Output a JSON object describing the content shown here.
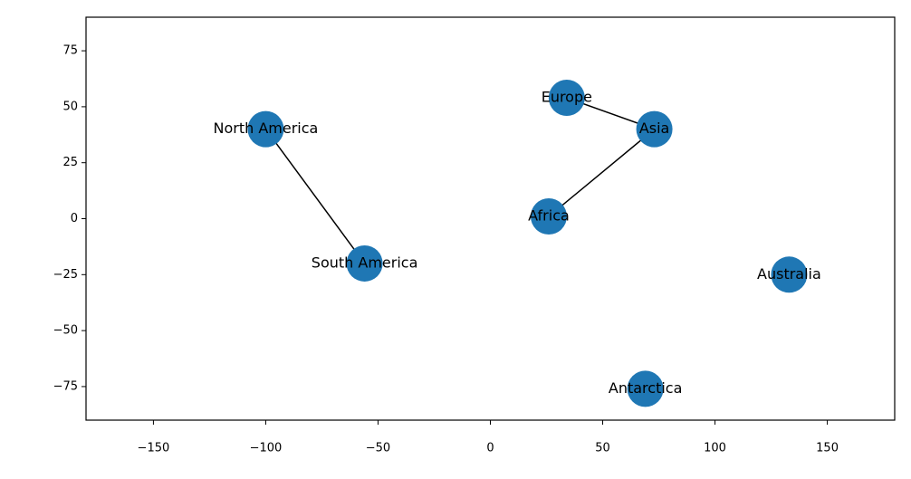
{
  "chart_data": {
    "type": "network",
    "labels": [
      "North America",
      "South America",
      "Europe",
      "Asia",
      "Africa",
      "Australia",
      "Antarctica"
    ],
    "x": [
      -100,
      -56,
      34,
      73,
      26,
      133,
      69
    ],
    "values": [
      40,
      -20,
      54,
      40,
      1,
      -25,
      -76
    ],
    "edges": [
      [
        0,
        1
      ],
      [
        2,
        3
      ],
      [
        3,
        4
      ]
    ],
    "color": "#1f77b4",
    "edge_color": "#000000",
    "xlim": [
      -180,
      180
    ],
    "ylim": [
      -90,
      90
    ],
    "xticks": [
      {
        "value": -150,
        "label": "−150"
      },
      {
        "value": -100,
        "label": "−100"
      },
      {
        "value": -50,
        "label": "−50"
      },
      0,
      50,
      100,
      150
    ],
    "yticks": [
      {
        "value": -75,
        "label": "−75"
      },
      {
        "value": -50,
        "label": "−50"
      },
      {
        "value": -25,
        "label": "−25"
      },
      0,
      25,
      50,
      75
    ],
    "grid": false
  }
}
